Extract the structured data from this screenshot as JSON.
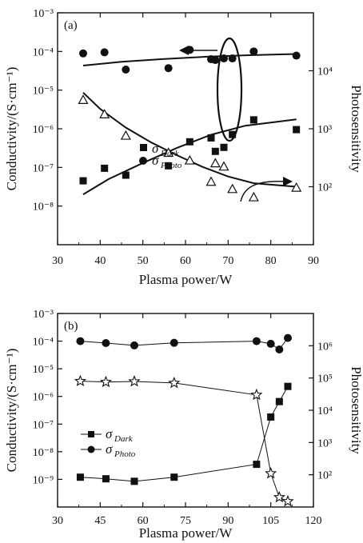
{
  "chart_data": [
    {
      "type": "scatter",
      "panel_label": "(a)",
      "xlabel": "Plasma power/W",
      "ylabel": "Conductivity/(S·cm⁻¹)",
      "y2label": "Photosensitivity",
      "xlim": [
        30,
        90
      ],
      "ylim": [
        1e-09,
        0.001
      ],
      "y2lim": [
        10,
        100000
      ],
      "yscale": "log",
      "y2scale": "log",
      "x_ticks": [
        "30",
        "40",
        "50",
        "60",
        "70",
        "80",
        "90"
      ],
      "y_ticks": [
        "10⁻³",
        "10⁻⁴",
        "10⁻⁵",
        "10⁻⁶",
        "10⁻⁷",
        "10⁻⁸"
      ],
      "y2_ticks": [
        "10⁴",
        "10³",
        "10²"
      ],
      "legend_position": "center-left",
      "series": [
        {
          "name": "σDark",
          "name_main": "σ",
          "name_sub": "Dark",
          "axis": "left",
          "marker": "filled-square",
          "color": "#111111",
          "points": [
            [
              36,
              4.5e-08
            ],
            [
              41,
              9.5e-08
            ],
            [
              46,
              6.3e-08
            ],
            [
              56,
              1.1e-07
            ],
            [
              61,
              4.6e-07
            ],
            [
              66,
              5.8e-07
            ],
            [
              67,
              2.6e-07
            ],
            [
              69,
              3.3e-07
            ],
            [
              71,
              7.1e-07
            ],
            [
              76,
              1.7e-06
            ],
            [
              86,
              9.5e-07
            ]
          ]
        },
        {
          "name": "σPhoto",
          "name_main": "σ",
          "name_sub": "Photo",
          "axis": "left",
          "marker": "filled-circle",
          "color": "#111111",
          "points": [
            [
              36,
              8.9e-05
            ],
            [
              41,
              9.5e-05
            ],
            [
              46,
              3.4e-05
            ],
            [
              56,
              3.7e-05
            ],
            [
              61,
              0.00011
            ],
            [
              66,
              6.3e-05
            ],
            [
              67,
              6e-05
            ],
            [
              69,
              6.6e-05
            ],
            [
              71,
              6.6e-05
            ],
            [
              76,
              0.0001
            ],
            [
              86,
              7.8e-05
            ]
          ]
        },
        {
          "name": "Photosensitivity",
          "axis": "right",
          "marker": "open-triangle",
          "color": "#111111",
          "points": [
            [
              36,
              3100
            ],
            [
              41,
              1750
            ],
            [
              46,
              750
            ],
            [
              56,
              380
            ],
            [
              61,
              280
            ],
            [
              66,
              120
            ],
            [
              67,
              250
            ],
            [
              69,
              220
            ],
            [
              71,
              90
            ],
            [
              76,
              65
            ],
            [
              86,
              95
            ]
          ]
        }
      ],
      "fit_lines": [
        {
          "axis": "left",
          "points": [
            [
              36,
              4.3e-05
            ],
            [
              45,
              5.4e-05
            ],
            [
              55,
              6.4e-05
            ],
            [
              65,
              7.3e-05
            ],
            [
              75,
              8e-05
            ],
            [
              86,
              8.6e-05
            ]
          ]
        },
        {
          "axis": "left",
          "points": [
            [
              36,
              2e-08
            ],
            [
              42,
              5e-08
            ],
            [
              50,
              1.3e-07
            ],
            [
              58,
              3.2e-07
            ],
            [
              66,
              7e-07
            ],
            [
              74,
              1.2e-06
            ],
            [
              86,
              1.75e-06
            ]
          ]
        },
        {
          "axis": "right",
          "points": [
            [
              36,
              4200
            ],
            [
              40,
              2200
            ],
            [
              46,
              1050
            ],
            [
              52,
              580
            ],
            [
              58,
              350
            ],
            [
              64,
              220
            ],
            [
              70,
              150
            ],
            [
              76,
              115
            ],
            [
              86,
              100
            ]
          ]
        }
      ],
      "annotations": [
        "left-pointing arrow from ellipse around the 76 W points",
        "curved arrow pointing right toward the Photosensitivity axis"
      ]
    },
    {
      "type": "line",
      "panel_label": "(b)",
      "xlabel": "Plasma power/W",
      "ylabel": "Conductivity/(S·cm⁻¹)",
      "y2label": "Photosensitivity",
      "xlim": [
        30,
        120
      ],
      "ylim": [
        1e-10,
        0.001
      ],
      "y2lim": [
        10,
        10000000
      ],
      "yscale": "log",
      "y2scale": "log",
      "x_ticks": [
        "30",
        "45",
        "60",
        "75",
        "90",
        "105",
        "120"
      ],
      "y_ticks": [
        "10⁻³",
        "10⁻⁴",
        "10⁻⁵",
        "10⁻⁶",
        "10⁻⁷",
        "10⁻⁸",
        "10⁻⁹"
      ],
      "y2_ticks": [
        "10⁶",
        "10⁵",
        "10⁴",
        "10³",
        "10²"
      ],
      "legend_position": "center-left",
      "series": [
        {
          "name": "σDark",
          "name_main": "σ",
          "name_sub": "Dark",
          "axis": "left",
          "marker": "filled-square",
          "color": "#111111",
          "points": [
            [
              38,
              1.2e-09
            ],
            [
              47,
              1.05e-09
            ],
            [
              57,
              8.5e-10
            ],
            [
              71,
              1.2e-09
            ],
            [
              100,
              3.5e-09
            ],
            [
              105,
              1.8e-07
            ],
            [
              108,
              6.5e-07
            ],
            [
              111,
              2.3e-06
            ]
          ]
        },
        {
          "name": "σPhoto",
          "name_main": "σ",
          "name_sub": "Photo",
          "axis": "left",
          "marker": "filled-circle",
          "color": "#111111",
          "points": [
            [
              38,
              0.0001
            ],
            [
              47,
              8.5e-05
            ],
            [
              57,
              7e-05
            ],
            [
              71,
              8.7e-05
            ],
            [
              100,
              0.0001
            ],
            [
              105,
              8e-05
            ],
            [
              108,
              5e-05
            ],
            [
              111,
              0.00013
            ]
          ]
        },
        {
          "name": "Photosensitivity",
          "axis": "right",
          "marker": "open-star",
          "color": "#111111",
          "points": [
            [
              38,
              80000
            ],
            [
              47,
              75000
            ],
            [
              57,
              78000
            ],
            [
              71,
              70000
            ],
            [
              100,
              30000
            ],
            [
              105,
              110
            ],
            [
              108,
              20
            ],
            [
              111,
              15
            ]
          ]
        }
      ]
    }
  ]
}
